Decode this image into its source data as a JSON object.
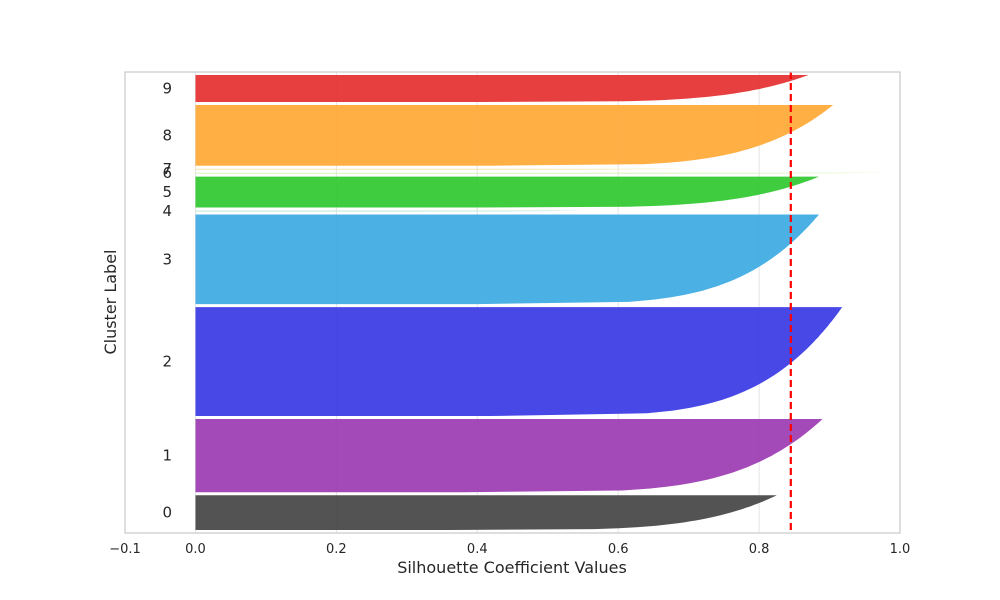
{
  "chart_data": {
    "type": "area",
    "title": "",
    "xlabel": "Silhouette Coefficient Values",
    "ylabel": "Cluster Label",
    "xlim": [
      -0.1,
      1.0
    ],
    "xticks": [
      "−0.1",
      "0.0",
      "0.2",
      "0.4",
      "0.6",
      "0.8",
      "1.0"
    ],
    "xtick_values": [
      -0.1,
      0.0,
      0.2,
      0.4,
      0.6,
      0.8,
      1.0
    ],
    "grid": true,
    "legend": "none",
    "reference_line": {
      "x": 0.845,
      "style": "dashed",
      "color": "#ff0000"
    },
    "series": [
      {
        "name": "0",
        "color": "#404040",
        "size": 36,
        "max": 0.825,
        "min": 0.36
      },
      {
        "name": "1",
        "color": "#9a36b0",
        "size": 76,
        "max": 0.89,
        "min": 0.38
      },
      {
        "name": "2",
        "color": "#3434e4",
        "size": 113,
        "max": 0.918,
        "min": 0.42
      },
      {
        "name": "3",
        "color": "#37a9e2",
        "size": 93,
        "max": 0.885,
        "min": 0.4
      },
      {
        "name": "4",
        "color": "#b3e6d1",
        "size": 1,
        "max": 0.55,
        "min": 0.3
      },
      {
        "name": "5",
        "color": "#2ac82a",
        "size": 32,
        "max": 0.885,
        "min": 0.4
      },
      {
        "name": "6",
        "color": "#c9f3a4",
        "size": 1,
        "max": 1.0,
        "min": 0.3
      },
      {
        "name": "7",
        "color": "#f5e3a0",
        "size": 1,
        "max": 0.7,
        "min": 0.3
      },
      {
        "name": "8",
        "color": "#ffa630",
        "size": 63,
        "max": 0.905,
        "min": 0.42
      },
      {
        "name": "9",
        "color": "#e42a2a",
        "size": 28,
        "max": 0.87,
        "min": 0.4
      }
    ]
  }
}
